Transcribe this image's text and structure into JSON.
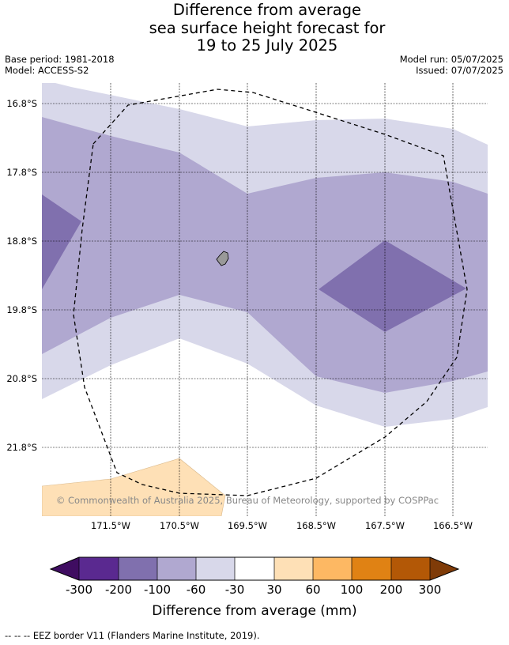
{
  "title": {
    "line1": "Difference from average",
    "line2": "sea surface height forecast for",
    "line3": "19 to 25 July 2025"
  },
  "meta": {
    "base_period": "Base period: 1981-2018",
    "model": "Model: ACCESS-S2",
    "model_run": "Model run: 05/07/2025",
    "issued": "Issued: 07/07/2025"
  },
  "map": {
    "lat_labels": [
      "16.8°S",
      "17.8°S",
      "18.8°S",
      "19.8°S",
      "20.8°S",
      "21.8°S"
    ],
    "lon_labels": [
      "171.5°W",
      "170.5°W",
      "169.5°W",
      "168.5°W",
      "167.5°W",
      "166.5°W"
    ],
    "copyright": "© Commonwealth of Australia 2025, Bureau of Meteorology, supported by COSPPac",
    "colors": {
      "band_m30_m60": "#d8d8ea",
      "band_m60_m100": "#b0a8d0",
      "band_m100_m200": "#8070ae",
      "band_30_60": "#fee0b6",
      "land": "#999999"
    }
  },
  "colorbar": {
    "ticks": [
      "-300",
      "-200",
      "-100",
      "-60",
      "-30",
      "30",
      "60",
      "100",
      "200",
      "300"
    ],
    "colors": [
      "#3f0d61",
      "#5a2990",
      "#8070ae",
      "#b0a8d0",
      "#d8d8ea",
      "#ffffff",
      "#fee0b6",
      "#fdb863",
      "#e08214",
      "#b35806",
      "#7f3b08"
    ],
    "label": "Difference from average (mm)"
  },
  "footer": "-- -- -- EEZ border V11 (Flanders Marine Institute, 2019)."
}
